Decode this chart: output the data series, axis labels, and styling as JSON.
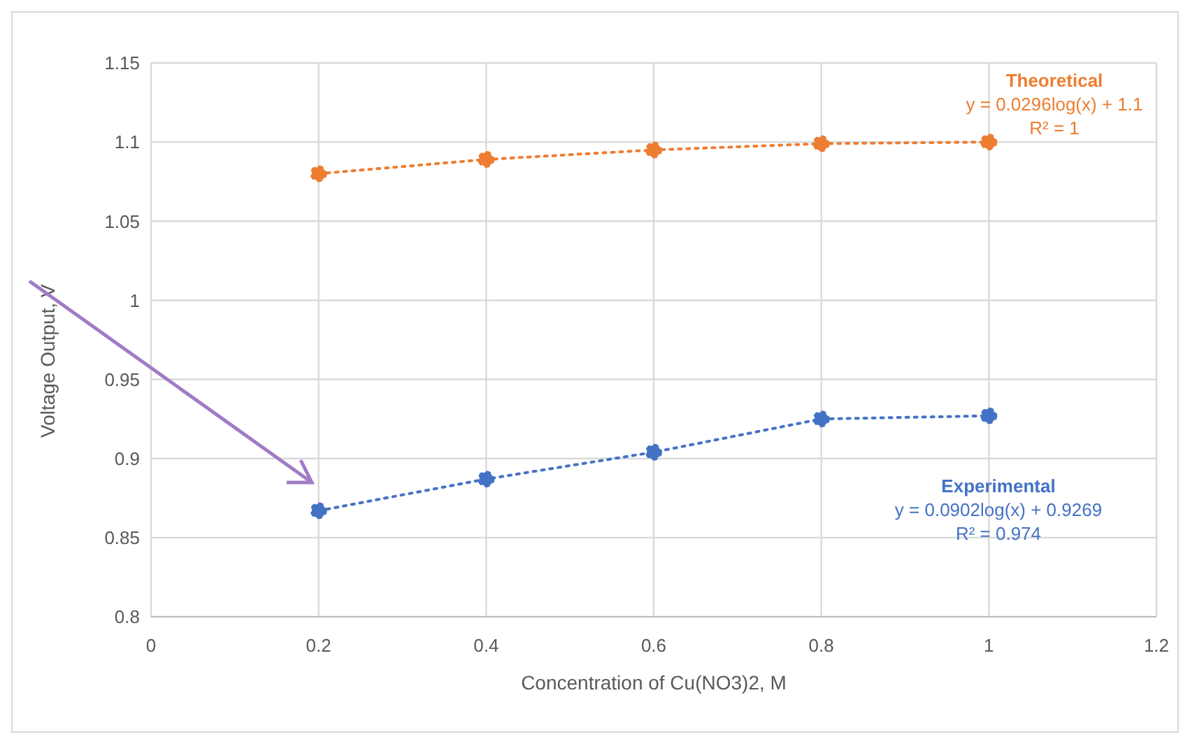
{
  "chart_data": {
    "type": "line",
    "xlabel": "Concentration of Cu(NO3)2, M",
    "ylabel": "Voltage Output, V",
    "x": [
      0.2,
      0.4,
      0.6,
      0.8,
      1
    ],
    "series": [
      {
        "name": "Theoretical",
        "color": "#ed7d31",
        "values": [
          1.08,
          1.089,
          1.095,
          1.099,
          1.1
        ]
      },
      {
        "name": "Experimental",
        "color": "#4472c4",
        "values": [
          0.867,
          0.887,
          0.904,
          0.925,
          0.927
        ]
      }
    ],
    "xlim": [
      0,
      1.2
    ],
    "xticks": [
      0,
      0.2,
      0.4,
      0.6,
      0.8,
      1,
      1.2
    ],
    "ylim": [
      0.8,
      1.15
    ],
    "yticks": [
      0.8,
      0.85,
      0.9,
      0.95,
      1,
      1.05,
      1.1,
      1.15
    ],
    "grid": true,
    "legend": false,
    "marker": "circle",
    "line_style": "dotted",
    "annotations": [
      "y = 0.0296log(x) + 1.1",
      "R² = 1",
      "y = 0.0902log(x) + 0.9269",
      "R² = 0.974"
    ]
  }
}
